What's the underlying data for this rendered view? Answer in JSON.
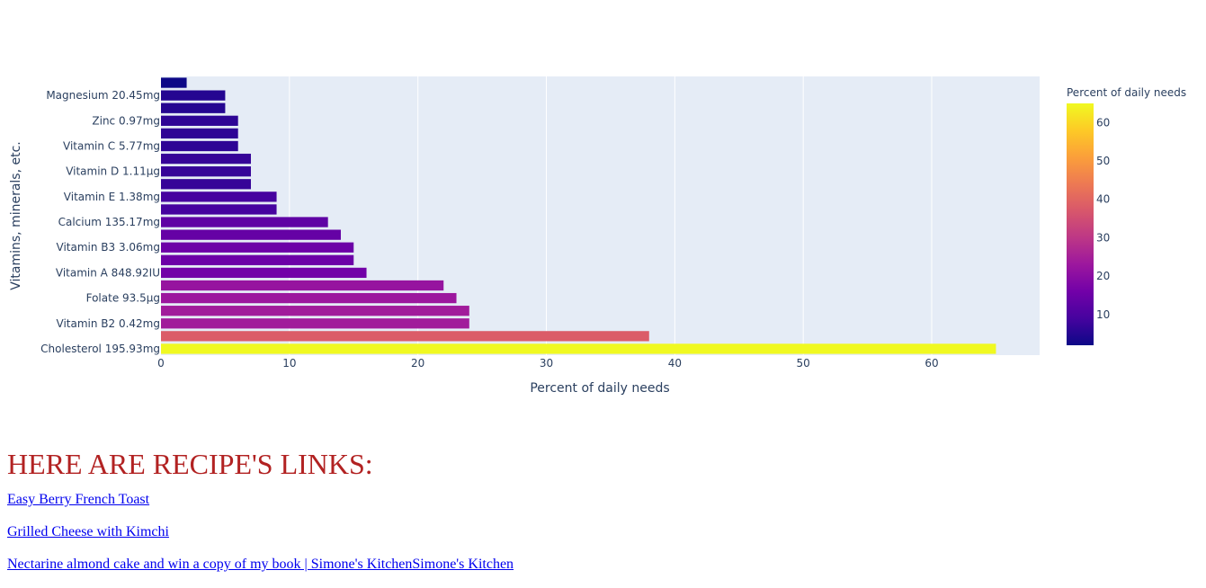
{
  "chart_data": {
    "type": "bar",
    "orientation": "horizontal",
    "xlabel": "Percent of daily needs",
    "ylabel": "Vitamins, minerals, etc.",
    "xlim": [
      0,
      68.4
    ],
    "x_ticks": [
      0,
      10,
      20,
      30,
      40,
      50,
      60
    ],
    "colorbar": {
      "title": "Percent of daily needs",
      "range": [
        2,
        65
      ],
      "ticks": [
        10,
        20,
        30,
        40,
        50,
        60
      ],
      "colorscale": [
        "#0d0887",
        "#46039f",
        "#7201a8",
        "#9c179e",
        "#bd3786",
        "#d8576b",
        "#ed7953",
        "#fb9f3a",
        "#fdca26",
        "#f0f921"
      ]
    },
    "bars": [
      {
        "label": "Cholesterol 195.93mg",
        "value": 65,
        "show_label": true
      },
      {
        "label": "",
        "value": 38,
        "show_label": false
      },
      {
        "label": "Vitamin B2 0.42mg",
        "value": 24,
        "show_label": true
      },
      {
        "label": "",
        "value": 24,
        "show_label": false
      },
      {
        "label": "Folate 93.5µg",
        "value": 23,
        "show_label": true
      },
      {
        "label": "",
        "value": 22,
        "show_label": false
      },
      {
        "label": "Vitamin A 848.92IU",
        "value": 16,
        "show_label": true
      },
      {
        "label": "",
        "value": 15,
        "show_label": false
      },
      {
        "label": "Vitamin B3 3.06mg",
        "value": 15,
        "show_label": true
      },
      {
        "label": "",
        "value": 14,
        "show_label": false
      },
      {
        "label": "Calcium 135.17mg",
        "value": 13,
        "show_label": true
      },
      {
        "label": "",
        "value": 9,
        "show_label": false
      },
      {
        "label": "Vitamin E 1.38mg",
        "value": 9,
        "show_label": true
      },
      {
        "label": "",
        "value": 7,
        "show_label": false
      },
      {
        "label": "Vitamin D 1.11µg",
        "value": 7,
        "show_label": true
      },
      {
        "label": "",
        "value": 7,
        "show_label": false
      },
      {
        "label": "Vitamin C 5.77mg",
        "value": 6,
        "show_label": true
      },
      {
        "label": "",
        "value": 6,
        "show_label": false
      },
      {
        "label": "Zinc 0.97mg",
        "value": 6,
        "show_label": true
      },
      {
        "label": "",
        "value": 5,
        "show_label": false
      },
      {
        "label": "Magnesium 20.45mg",
        "value": 5,
        "show_label": true
      },
      {
        "label": "",
        "value": 2,
        "show_label": false
      }
    ]
  },
  "links_section": {
    "heading": "HERE ARE RECIPE'S LINKS:",
    "links": [
      {
        "text": "Easy Berry French Toast"
      },
      {
        "text": "Grilled Cheese with Kimchi"
      },
      {
        "text": "Nectarine almond cake and win a copy of my book | Simone's KitchenSimone's Kitchen"
      }
    ]
  }
}
